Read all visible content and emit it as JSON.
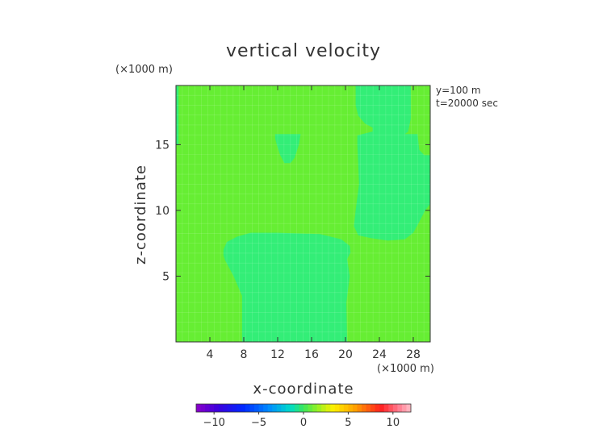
{
  "chart_data": {
    "type": "heatmap",
    "title": "vertical velocity",
    "xlabel": "x-coordinate",
    "ylabel": "z-coordinate",
    "x_unit": "(×1000 m)",
    "y_unit": "(×1000 m)",
    "annotations": [
      "y=100 m",
      "t=20000 sec"
    ],
    "xlim": [
      0,
      30
    ],
    "ylim": [
      0,
      19.5
    ],
    "x_ticks": [
      4,
      8,
      12,
      16,
      20,
      24,
      28
    ],
    "y_ticks": [
      5,
      10,
      15
    ],
    "grid": true,
    "colorbar": {
      "ticks": [
        -10,
        -5,
        0,
        5,
        10
      ],
      "range": [
        -12,
        12
      ]
    },
    "fill_levels": {
      "background": "#66ee33",
      "lower_contour": "#33ee77"
    },
    "regions": [
      {
        "name": "left-edge-region",
        "level": "lower_contour",
        "points": [
          [
            0,
            19.5
          ],
          [
            0.3,
            19.5
          ],
          [
            0.3,
            15
          ],
          [
            0,
            15
          ]
        ]
      },
      {
        "name": "center-lower-region",
        "level": "lower_contour",
        "points": [
          [
            7.8,
            0
          ],
          [
            20.2,
            0
          ],
          [
            20.1,
            3
          ],
          [
            20.5,
            5
          ],
          [
            20.2,
            6.3
          ],
          [
            20.6,
            6.8
          ],
          [
            20.5,
            7.3
          ],
          [
            19.5,
            7.8
          ],
          [
            17,
            8.2
          ],
          [
            12,
            8.3
          ],
          [
            10,
            8.3
          ],
          [
            8.8,
            8.3
          ],
          [
            7.2,
            8
          ],
          [
            6,
            7.6
          ],
          [
            5.6,
            7
          ],
          [
            5.6,
            6.6
          ],
          [
            5.8,
            6.2
          ],
          [
            6.8,
            5
          ],
          [
            7.8,
            3.5
          ]
        ]
      },
      {
        "name": "center-top-bubble",
        "level": "lower_contour",
        "points": [
          [
            11.7,
            15.8
          ],
          [
            14.7,
            15.8
          ],
          [
            14.5,
            15
          ],
          [
            14,
            14
          ],
          [
            13.5,
            13.6
          ],
          [
            12.8,
            13.6
          ],
          [
            12.3,
            14.2
          ],
          [
            11.9,
            15
          ],
          [
            11.7,
            15.5
          ]
        ]
      },
      {
        "name": "upper-right-region",
        "level": "lower_contour",
        "points": [
          [
            21.2,
            19.5
          ],
          [
            27.7,
            19.5
          ],
          [
            27.7,
            17
          ],
          [
            27.4,
            16
          ],
          [
            27,
            15.8
          ],
          [
            28.5,
            15.8
          ],
          [
            30,
            15.6
          ],
          [
            30,
            10.5
          ],
          [
            29.4,
            10
          ],
          [
            28.6,
            9
          ],
          [
            28,
            8.3
          ],
          [
            27,
            7.8
          ],
          [
            25,
            7.7
          ],
          [
            23,
            7.9
          ],
          [
            21.5,
            8.1
          ],
          [
            21,
            8.8
          ],
          [
            21.2,
            10
          ],
          [
            21.6,
            12
          ],
          [
            21.5,
            13.5
          ],
          [
            21.4,
            15
          ],
          [
            21.4,
            15.7
          ],
          [
            22,
            15.8
          ],
          [
            23.2,
            16
          ],
          [
            23.2,
            16.3
          ],
          [
            22.3,
            16.6
          ],
          [
            21.5,
            17.2
          ],
          [
            21.2,
            18
          ]
        ]
      },
      {
        "name": "right-edge-bubble",
        "level": "background",
        "points": [
          [
            28.5,
            15.8
          ],
          [
            30,
            15.8
          ],
          [
            30,
            14.2
          ],
          [
            29.3,
            14.2
          ],
          [
            28.7,
            14.6
          ]
        ]
      }
    ]
  }
}
